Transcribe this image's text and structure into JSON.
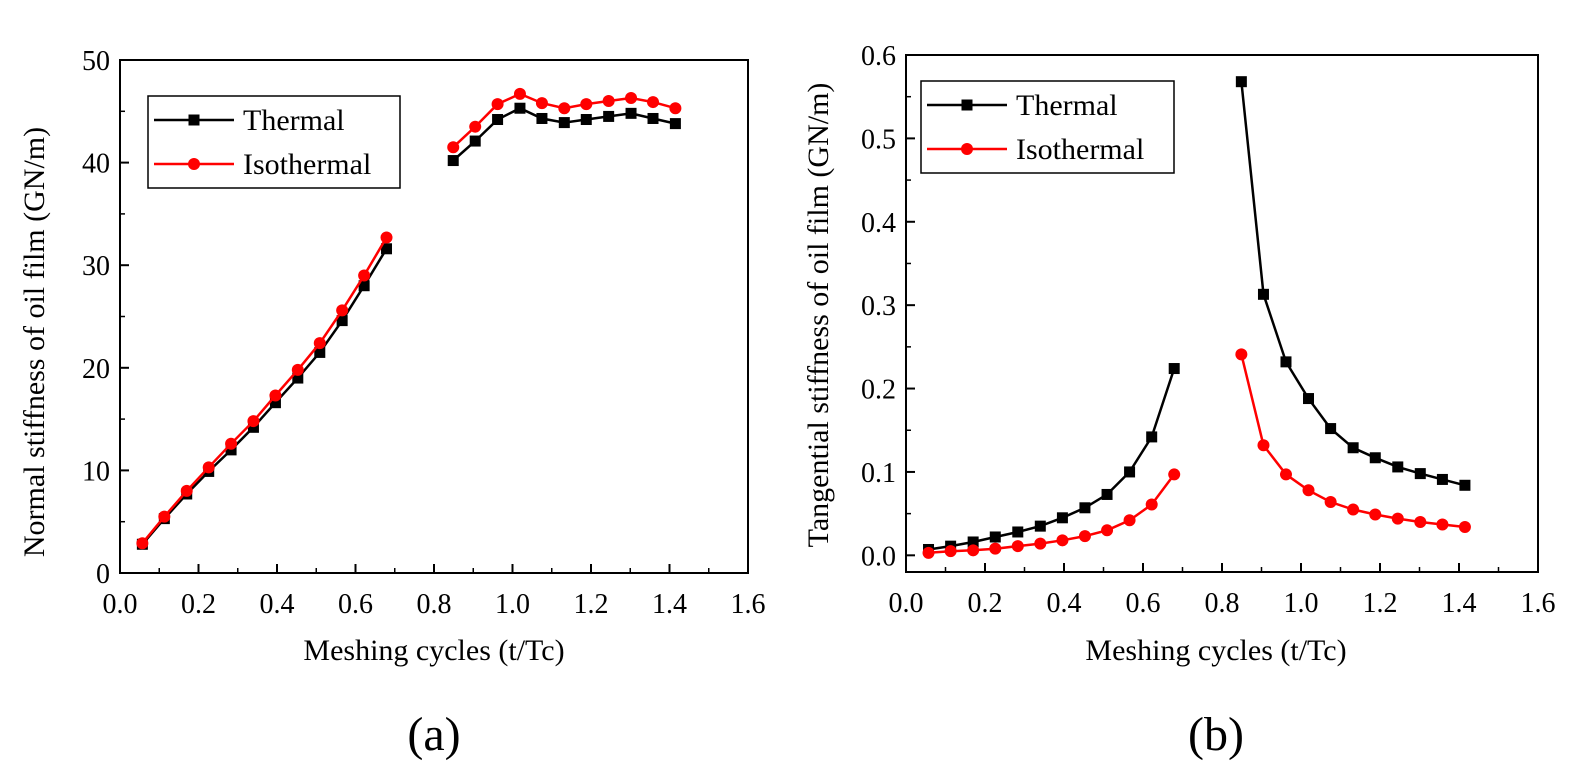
{
  "chart_data": [
    {
      "type": "line",
      "panel_label": "(a)",
      "xlabel": "Meshing cycles (t/Tc)",
      "ylabel": "Normal stiffness of oil film (GN/m)",
      "xlim": [
        0.0,
        1.6
      ],
      "ylim": [
        0,
        50
      ],
      "xticks": [
        "0.0",
        "0.2",
        "0.4",
        "0.6",
        "0.8",
        "1.0",
        "1.2",
        "1.4",
        "1.6"
      ],
      "yticks": [
        "0",
        "10",
        "20",
        "30",
        "40",
        "50"
      ],
      "grid": false,
      "legend_position": "top-left",
      "series": [
        {
          "name": "Thermal",
          "color": "#000000",
          "marker": "square",
          "segments": [
            {
              "x": [
                0.057,
                0.113,
                0.17,
                0.226,
                0.283,
                0.34,
                0.396,
                0.453,
                0.509,
                0.566,
                0.622,
                0.679
              ],
              "y": [
                2.8,
                5.3,
                7.7,
                9.9,
                12.0,
                14.2,
                16.6,
                19.0,
                21.5,
                24.6,
                28.0,
                31.6
              ]
            },
            {
              "x": [
                0.849,
                0.905,
                0.962,
                1.019,
                1.075,
                1.132,
                1.188,
                1.245,
                1.302,
                1.358,
                1.415
              ],
              "y": [
                40.2,
                42.1,
                44.2,
                45.3,
                44.3,
                43.9,
                44.2,
                44.5,
                44.8,
                44.3,
                43.8
              ]
            }
          ]
        },
        {
          "name": "Isothermal",
          "color": "#ff0000",
          "marker": "circle",
          "segments": [
            {
              "x": [
                0.057,
                0.113,
                0.17,
                0.226,
                0.283,
                0.34,
                0.396,
                0.453,
                0.509,
                0.566,
                0.622,
                0.679
              ],
              "y": [
                2.9,
                5.5,
                8.0,
                10.3,
                12.6,
                14.8,
                17.3,
                19.8,
                22.4,
                25.6,
                29.0,
                32.7
              ]
            },
            {
              "x": [
                0.849,
                0.905,
                0.962,
                1.019,
                1.075,
                1.132,
                1.188,
                1.245,
                1.302,
                1.358,
                1.415
              ],
              "y": [
                41.5,
                43.5,
                45.7,
                46.7,
                45.8,
                45.3,
                45.7,
                46.0,
                46.3,
                45.9,
                45.3
              ]
            }
          ]
        }
      ]
    },
    {
      "type": "line",
      "panel_label": "(b)",
      "xlabel": "Meshing cycles (t/Tc)",
      "ylabel": "Tangential stiffness of oil film (GN/m)",
      "xlim": [
        0.0,
        1.6
      ],
      "ylim": [
        -0.02,
        0.6
      ],
      "xticks": [
        "0.0",
        "0.2",
        "0.4",
        "0.6",
        "0.8",
        "1.0",
        "1.2",
        "1.4",
        "1.6"
      ],
      "yticks": [
        "0.0",
        "0.1",
        "0.2",
        "0.3",
        "0.4",
        "0.5",
        "0.6"
      ],
      "grid": false,
      "legend_position": "top-left",
      "series": [
        {
          "name": "Thermal",
          "color": "#000000",
          "marker": "square",
          "segments": [
            {
              "x": [
                0.057,
                0.113,
                0.17,
                0.226,
                0.283,
                0.34,
                0.396,
                0.453,
                0.509,
                0.566,
                0.622,
                0.679
              ],
              "y": [
                0.007,
                0.011,
                0.016,
                0.022,
                0.028,
                0.035,
                0.045,
                0.057,
                0.073,
                0.1,
                0.142,
                0.224
              ]
            },
            {
              "x": [
                0.849,
                0.905,
                0.962,
                1.019,
                1.075,
                1.132,
                1.188,
                1.245,
                1.302,
                1.358,
                1.415
              ],
              "y": [
                0.568,
                0.313,
                0.232,
                0.188,
                0.152,
                0.129,
                0.117,
                0.106,
                0.098,
                0.091,
                0.084
              ]
            }
          ]
        },
        {
          "name": "Isothermal",
          "color": "#ff0000",
          "marker": "circle",
          "segments": [
            {
              "x": [
                0.057,
                0.113,
                0.17,
                0.226,
                0.283,
                0.34,
                0.396,
                0.453,
                0.509,
                0.566,
                0.622,
                0.679
              ],
              "y": [
                0.003,
                0.005,
                0.006,
                0.008,
                0.011,
                0.014,
                0.018,
                0.023,
                0.03,
                0.042,
                0.061,
                0.097
              ]
            },
            {
              "x": [
                0.849,
                0.905,
                0.962,
                1.019,
                1.075,
                1.132,
                1.188,
                1.245,
                1.302,
                1.358,
                1.415
              ],
              "y": [
                0.241,
                0.132,
                0.097,
                0.078,
                0.064,
                0.055,
                0.049,
                0.044,
                0.04,
                0.037,
                0.034
              ]
            }
          ]
        }
      ]
    }
  ]
}
